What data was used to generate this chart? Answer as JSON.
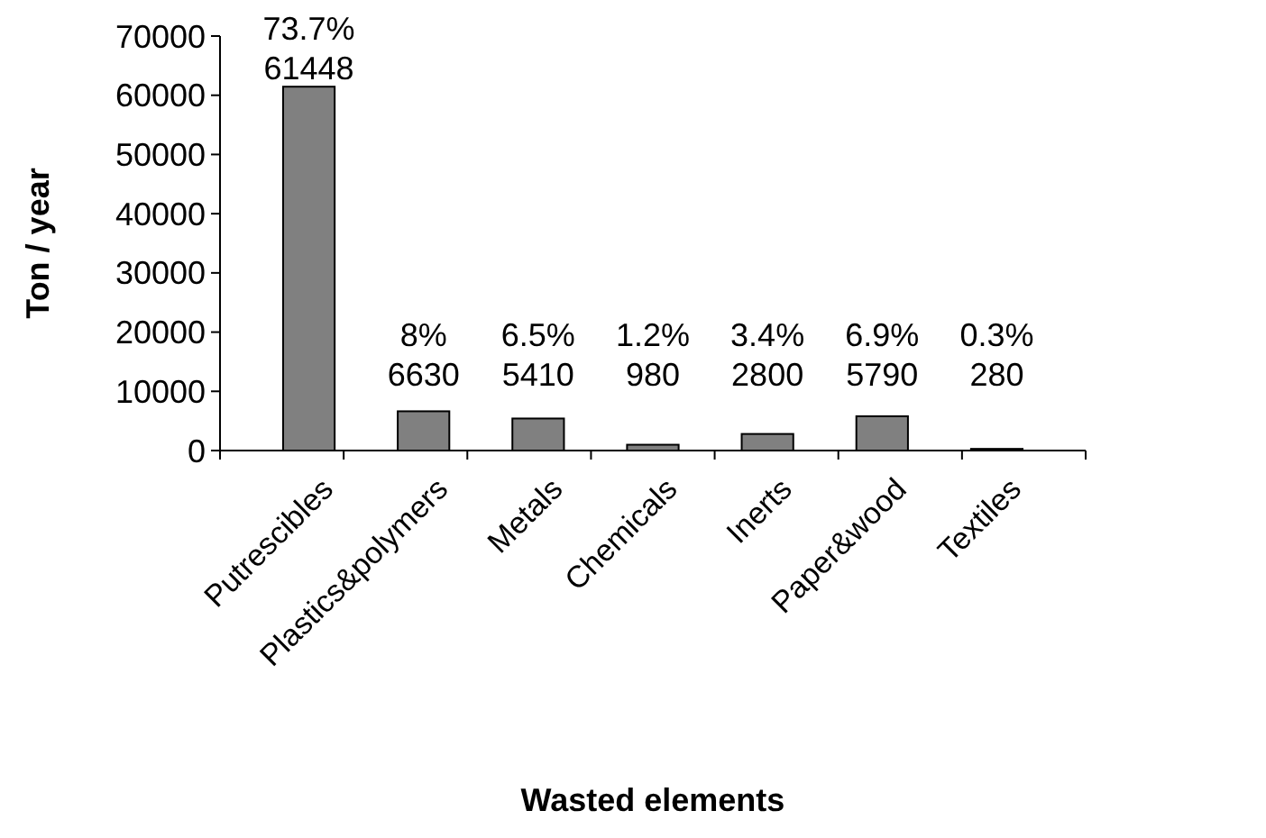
{
  "chart_data": {
    "type": "bar",
    "xlabel": "Wasted elements",
    "ylabel": "Ton / year",
    "categories": [
      "Putrescibles",
      "Plastics&polymers",
      "Metals",
      "Chemicals",
      "Inerts",
      "Paper&wood",
      "Textiles"
    ],
    "values": [
      61448,
      6630,
      5410,
      980,
      2800,
      5790,
      280
    ],
    "color": "#808080",
    "ylim": [
      0,
      70000
    ],
    "yticks": [
      0,
      10000,
      20000,
      30000,
      40000,
      50000,
      60000,
      70000
    ],
    "grid": false,
    "data_labels": true,
    "annotations": [
      {
        "text": "73.7%",
        "x": "Putrescibles",
        "y": 61448
      },
      {
        "text": "8%",
        "x": "Plastics&polymers",
        "y": 6630
      },
      {
        "text": "6.5%",
        "x": "Metals",
        "y": 5410
      },
      {
        "text": "1.2%",
        "x": "Chemicals",
        "y": 980
      },
      {
        "text": "3.4%",
        "x": "Inerts",
        "y": 2800
      },
      {
        "text": "6.9%",
        "x": "Paper&wood",
        "y": 5790
      },
      {
        "text": "0.3%",
        "x": "Textiles",
        "y": 280
      }
    ]
  }
}
